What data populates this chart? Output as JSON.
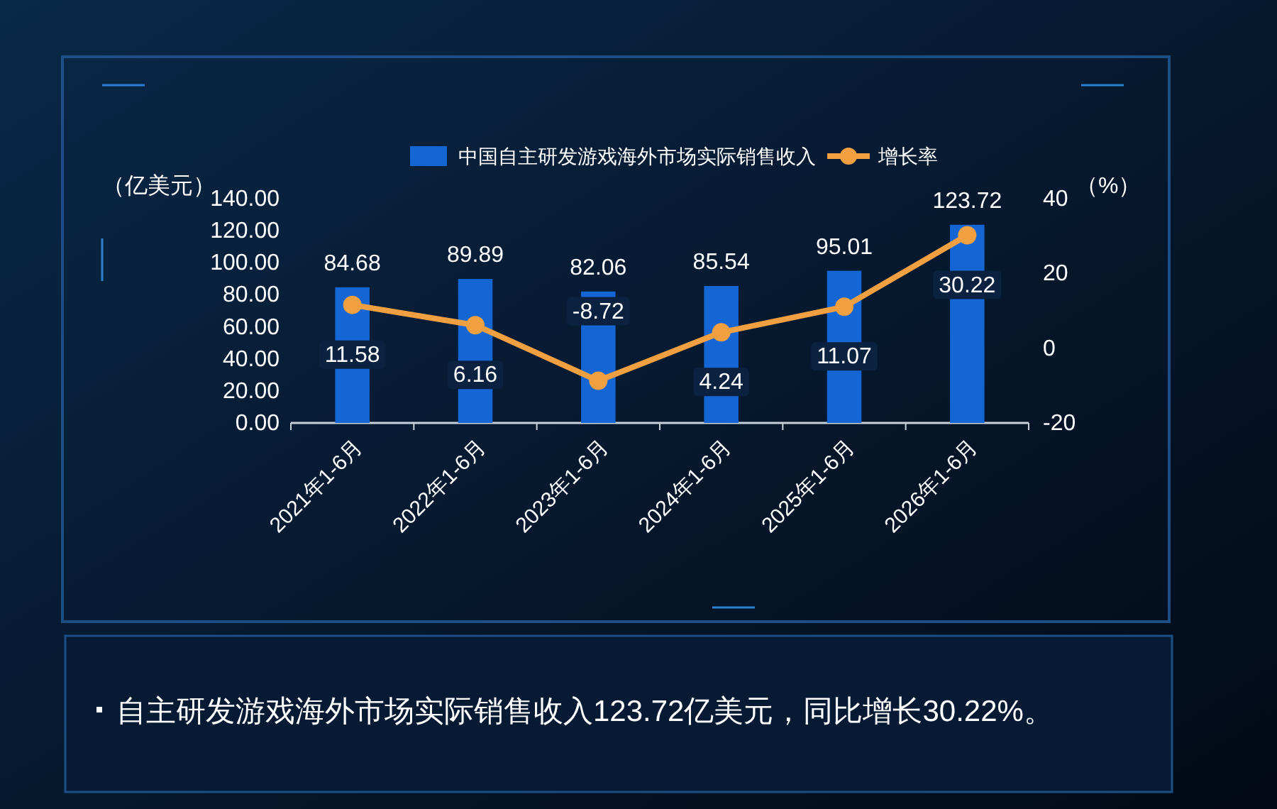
{
  "chart_data": {
    "type": "bar",
    "categories": [
      "2021年1-6月",
      "2022年1-6月",
      "2023年1-6月",
      "2024年1-6月",
      "2025年1-6月",
      "2026年1-6月"
    ],
    "series": [
      {
        "name": "中国自主研发游戏海外市场实际销售收入",
        "color": "#1466d4",
        "values": [
          84.68,
          89.89,
          82.06,
          85.54,
          95.01,
          123.72
        ]
      },
      {
        "name": "增长率",
        "type": "line",
        "axis": "y2",
        "color": "#f0a040",
        "marker": "circle",
        "values": [
          11.58,
          6.16,
          -8.72,
          4.24,
          11.07,
          30.22
        ]
      }
    ],
    "ylabel": "（亿美元）",
    "y2label": "（%）",
    "ylim": [
      0,
      140
    ],
    "yticks": [
      {
        "value": 0,
        "label": "0.00"
      },
      {
        "value": 20,
        "label": "20.00"
      },
      {
        "value": 40,
        "label": "40.00"
      },
      {
        "value": 60,
        "label": "60.00"
      },
      {
        "value": 80,
        "label": "80.00"
      },
      {
        "value": 100,
        "label": "100.00"
      },
      {
        "value": 120,
        "label": "120.00"
      },
      {
        "value": 140,
        "label": "140.00"
      }
    ],
    "y2lim": [
      -20,
      40
    ],
    "y2ticks": [
      -20,
      0,
      20,
      40
    ],
    "data_labels": true,
    "legend": "top",
    "grid": false,
    "annotations": [
      "自主研发游戏海外市场实际销售收入123.72亿美元，同比增长30.22%。"
    ]
  }
}
